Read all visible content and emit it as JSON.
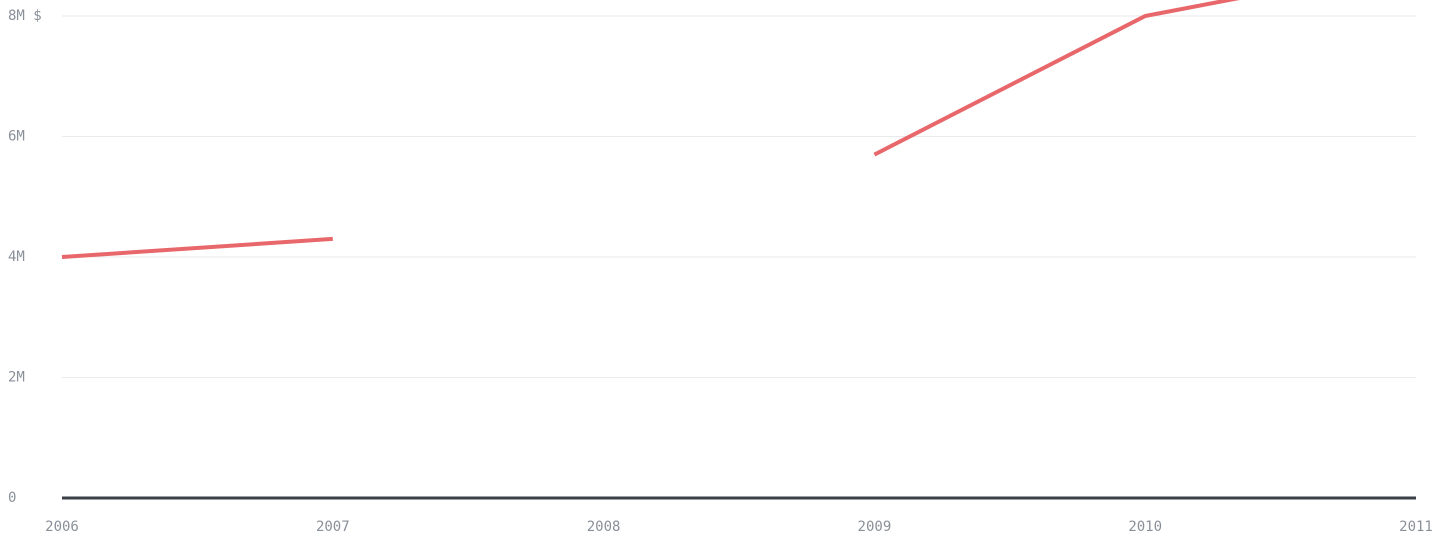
{
  "chart_data": {
    "type": "line",
    "x": [
      2006,
      2007,
      2008,
      2009,
      2010,
      2011
    ],
    "series": [
      {
        "color": "#e8676b",
        "segments": [
          [
            [
              2006,
              4.0
            ],
            [
              2007,
              4.3
            ]
          ],
          [
            [
              2009,
              5.7
            ],
            [
              2010,
              8.0
            ],
            [
              2010.35,
              8.3
            ]
          ]
        ]
      }
    ],
    "xlim": [
      2006,
      2011
    ],
    "ylim": [
      0,
      8
    ],
    "ylabel_unit": "$",
    "x_ticks": [
      "2006",
      "2007",
      "2008",
      "2009",
      "2010",
      "2011"
    ],
    "y_ticks": [
      {
        "value": 0,
        "label": "0"
      },
      {
        "value": 2,
        "label": "2M"
      },
      {
        "value": 4,
        "label": "4M"
      },
      {
        "value": 6,
        "label": "6M"
      },
      {
        "value": 8,
        "label": "8M $"
      }
    ],
    "grid": true,
    "colors": {
      "grid": "#e9eaec",
      "axis": "#3b4047",
      "tick_text": "#8a9099"
    }
  }
}
